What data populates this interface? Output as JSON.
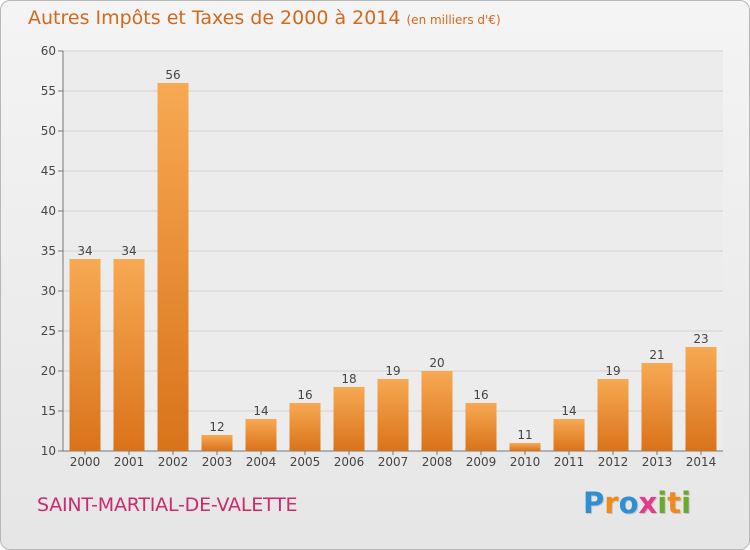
{
  "header": {
    "title": "Autres Impôts et Taxes de 2000 à 2014",
    "subtitle": "(en milliers d'€)"
  },
  "footer": {
    "commune": "SAINT-MARTIAL-DE-VALETTE",
    "logo_letters": [
      {
        "char": "P",
        "color": "#2f8fd0"
      },
      {
        "char": "r",
        "color": "#f08a1c"
      },
      {
        "char": "o",
        "color": "#2f8fd0"
      },
      {
        "char": "x",
        "color": "#e03c8c"
      },
      {
        "char": "i",
        "color": "#6aaa2a"
      },
      {
        "char": "t",
        "color": "#f08a1c"
      },
      {
        "char": "i",
        "color": "#6aaa2a"
      }
    ]
  },
  "colors": {
    "bar_top": "#f7a953",
    "bar_bottom": "#d9731a",
    "title": "#d2691e",
    "commune": "#cc2a6e"
  },
  "chart_data": {
    "type": "bar",
    "categories": [
      "2000",
      "2001",
      "2002",
      "2003",
      "2004",
      "2005",
      "2006",
      "2007",
      "2008",
      "2009",
      "2010",
      "2011",
      "2012",
      "2013",
      "2014"
    ],
    "values": [
      34,
      34,
      56,
      12,
      14,
      16,
      18,
      19,
      20,
      16,
      11,
      14,
      19,
      21,
      23
    ],
    "ylim": [
      10,
      60
    ],
    "yticks": [
      10,
      15,
      20,
      25,
      30,
      35,
      40,
      45,
      50,
      55,
      60
    ],
    "grid": true,
    "title": "Autres Impôts et Taxes de 2000 à 2014",
    "xlabel": "",
    "ylabel": ""
  }
}
